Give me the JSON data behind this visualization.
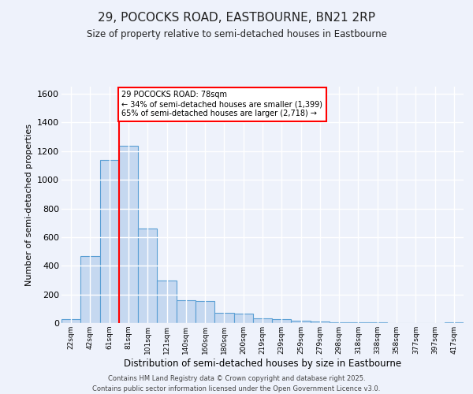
{
  "title_line1": "29, POCOCKS ROAD, EASTBOURNE, BN21 2RP",
  "title_line2": "Size of property relative to semi-detached houses in Eastbourne",
  "xlabel": "Distribution of semi-detached houses by size in Eastbourne",
  "ylabel": "Number of semi-detached properties",
  "footer_line1": "Contains HM Land Registry data © Crown copyright and database right 2025.",
  "footer_line2": "Contains public sector information licensed under the Open Government Licence v3.0.",
  "bin_labels": [
    "22sqm",
    "42sqm",
    "61sqm",
    "81sqm",
    "101sqm",
    "121sqm",
    "140sqm",
    "160sqm",
    "180sqm",
    "200sqm",
    "219sqm",
    "239sqm",
    "259sqm",
    "279sqm",
    "298sqm",
    "318sqm",
    "338sqm",
    "358sqm",
    "377sqm",
    "397sqm",
    "417sqm"
  ],
  "bar_values": [
    25,
    470,
    1140,
    1240,
    660,
    295,
    160,
    155,
    70,
    65,
    35,
    25,
    15,
    10,
    8,
    5,
    3,
    2,
    2,
    2,
    8
  ],
  "bar_color": "#c5d8f0",
  "bar_edge_color": "#5a9fd4",
  "ylim": [
    0,
    1650
  ],
  "yticks": [
    0,
    200,
    400,
    600,
    800,
    1000,
    1200,
    1400,
    1600
  ],
  "redline_bin_index": 3,
  "annotation_text_line1": "29 POCOCKS ROAD: 78sqm",
  "annotation_text_line2": "← 34% of semi-detached houses are smaller (1,399)",
  "annotation_text_line3": "65% of semi-detached houses are larger (2,718) →",
  "annotation_box_color": "white",
  "annotation_box_edge_color": "red",
  "vline_color": "red",
  "background_color": "#eef2fb",
  "grid_color": "white"
}
